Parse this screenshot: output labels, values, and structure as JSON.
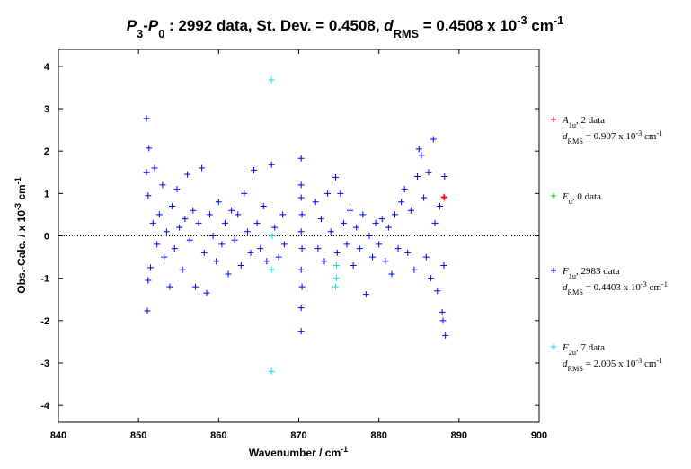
{
  "chart_data": {
    "type": "scatter",
    "title_parts": [
      "P",
      "3",
      "-",
      "P",
      "0",
      " : 2992 data, St. Dev. = 0.4508, ",
      "d",
      "RMS",
      " = 0.4508 x 10",
      "-3",
      " cm",
      "-1"
    ],
    "xlabel_parts": [
      "Wavenumber / cm",
      "-1"
    ],
    "ylabel_parts": [
      "Obs.-Calc. / x 10",
      "-3",
      " cm",
      "-1"
    ],
    "xlim": [
      840,
      900
    ],
    "xticks": [
      840,
      850,
      860,
      870,
      880,
      890,
      900
    ],
    "ylim": [
      -4.4,
      4.4
    ],
    "yticks": [
      -4,
      -3,
      -2,
      -1,
      0,
      1,
      2,
      3,
      4
    ],
    "series": [
      {
        "color": "#ff0000",
        "legend": [
          "A",
          "1u",
          ", 2 data"
        ],
        "stat": [
          "d",
          "RMS",
          " = 0.907 x 10",
          "-3",
          " cm",
          "-1"
        ],
        "x": [
          888.1,
          888.2
        ],
        "values": [
          0.92,
          0.9
        ]
      },
      {
        "color": "#00cc00",
        "legend": [
          "E",
          "u",
          ", 0 data"
        ],
        "stat": null,
        "x": [],
        "values": []
      },
      {
        "color": "#0000ff",
        "legend": [
          "F",
          "1u",
          ", 2983 data"
        ],
        "stat": [
          "d",
          "RMS",
          " = 0.4403 x 10",
          "-3",
          " cm",
          "-1"
        ],
        "x": [
          851.0,
          851.3,
          851.0,
          851.2,
          851.1,
          851.2,
          851.5,
          851.8,
          852.0,
          852.3,
          852.6,
          853.0,
          853.2,
          853.5,
          853.9,
          854.2,
          854.5,
          854.8,
          855.1,
          855.5,
          855.8,
          856.1,
          856.4,
          856.8,
          857.1,
          857.5,
          857.9,
          858.2,
          858.5,
          858.9,
          859.3,
          859.7,
          860.0,
          860.4,
          860.8,
          861.2,
          861.6,
          862.0,
          862.4,
          862.8,
          863.2,
          863.6,
          864.0,
          864.4,
          864.8,
          865.2,
          865.6,
          866.0,
          866.6,
          867.0,
          867.5,
          868.0,
          868.2,
          870.3,
          870.3,
          870.3,
          870.4,
          870.3,
          870.4,
          870.3,
          870.4,
          870.3,
          870.3,
          872.1,
          872.4,
          872.8,
          873.2,
          873.6,
          874.0,
          874.6,
          874.8,
          875.2,
          875.6,
          876.0,
          876.4,
          876.8,
          877.2,
          877.6,
          878.0,
          878.4,
          878.8,
          879.2,
          879.6,
          880.0,
          880.4,
          880.8,
          881.2,
          881.6,
          882.0,
          882.4,
          882.8,
          883.2,
          883.6,
          884.0,
          884.4,
          884.8,
          885.0,
          885.3,
          885.6,
          885.9,
          886.2,
          886.5,
          886.8,
          887.0,
          887.3,
          887.6,
          887.9,
          888.0,
          888.2,
          888.3,
          888.1
        ],
        "values": [
          2.77,
          2.07,
          1.5,
          0.95,
          -1.77,
          -1.05,
          -0.75,
          0.3,
          1.6,
          -0.2,
          0.5,
          1.2,
          -0.5,
          0.1,
          -1.2,
          0.7,
          -0.3,
          1.1,
          0.2,
          -0.8,
          0.4,
          1.45,
          -0.1,
          0.6,
          -1.2,
          0.3,
          1.6,
          -0.4,
          -1.35,
          0.5,
          0.0,
          -0.6,
          0.8,
          -0.2,
          0.3,
          -0.9,
          0.6,
          -0.1,
          0.5,
          -0.7,
          1.0,
          0.1,
          -0.4,
          1.55,
          0.3,
          -0.3,
          0.7,
          -0.6,
          1.68,
          0.2,
          -0.5,
          0.5,
          -0.2,
          1.83,
          1.2,
          0.9,
          0.5,
          0.1,
          -0.3,
          -0.8,
          -1.2,
          -1.7,
          -2.25,
          0.8,
          -0.3,
          0.4,
          -0.6,
          1.0,
          0.1,
          1.38,
          -0.4,
          1.0,
          0.3,
          -0.2,
          0.6,
          -0.7,
          0.2,
          -0.3,
          0.5,
          -1.38,
          0.0,
          -0.5,
          0.3,
          -0.2,
          0.4,
          -0.6,
          0.2,
          -0.9,
          0.5,
          -0.3,
          0.8,
          1.1,
          -0.4,
          0.6,
          -0.8,
          1.4,
          2.05,
          1.9,
          0.9,
          -0.5,
          1.5,
          -1.0,
          2.28,
          0.3,
          -1.3,
          0.7,
          -1.8,
          -2.0,
          1.4,
          -2.35,
          -0.7
        ]
      },
      {
        "color": "#00e5ee",
        "legend": [
          "F",
          "2u",
          ", 7 data"
        ],
        "stat": [
          "d",
          "RMS",
          " = 2.005 x 10",
          "-3",
          " cm",
          "-1"
        ],
        "x": [
          866.6,
          866.6,
          866.6,
          874.7,
          874.7,
          874.6,
          866.7
        ],
        "values": [
          3.68,
          -0.8,
          -3.2,
          -0.7,
          -1.0,
          -1.2,
          0.0
        ]
      }
    ]
  }
}
